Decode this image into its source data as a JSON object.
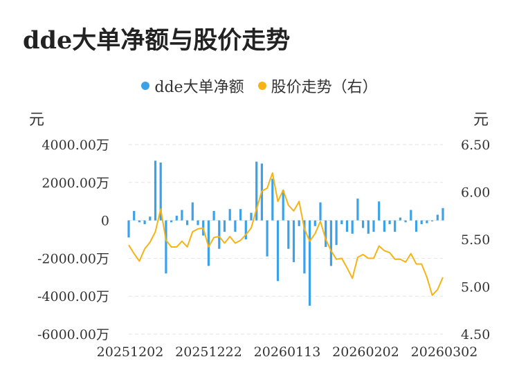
{
  "title": "dde大单净额与股价走势",
  "legend": [
    {
      "label": "dde大单净额",
      "color": "#3ba1e8"
    },
    {
      "label": "股价走势（右）",
      "color": "#f5b314"
    }
  ],
  "units": {
    "left": "元",
    "right": "元"
  },
  "chart_data": {
    "type": "bar+line",
    "left_axis": {
      "ticks": [
        "4000.00万",
        "2000.00万",
        "0",
        "-2000.00万",
        "-4000.00万",
        "-6000.00万"
      ],
      "min": -6000,
      "max": 4000
    },
    "right_axis": {
      "ticks": [
        "6.50",
        "6.00",
        "5.50",
        "5.00",
        "4.50"
      ],
      "min": 4.5,
      "max": 6.5
    },
    "x_labels": [
      "20251202",
      "20251222",
      "20260113",
      "20260202",
      "20260302"
    ],
    "grid": true,
    "legend_position": "top",
    "series": [
      {
        "name": "dde大单净额",
        "type": "bar",
        "axis": "left",
        "values": [
          -900,
          500,
          -100,
          -200,
          200,
          3150,
          3050,
          -2800,
          -100,
          250,
          550,
          -250,
          950,
          -250,
          -800,
          -2400,
          500,
          -1500,
          -600,
          600,
          -600,
          600,
          -1000,
          400,
          3100,
          3000,
          -1900,
          2200,
          -3200,
          1600,
          -1500,
          -2200,
          -300,
          -2800,
          -4500,
          -300,
          950,
          -1400,
          -2400,
          -1300,
          -200,
          -600,
          -700,
          1150,
          -400,
          -700,
          -600,
          1000,
          -600,
          -200,
          -600,
          150,
          -100,
          550,
          -600,
          -200,
          -150,
          -50,
          300,
          650
        ]
      },
      {
        "name": "股价走势（右）",
        "type": "line",
        "axis": "right",
        "values": [
          5.44,
          5.35,
          5.27,
          5.4,
          5.47,
          5.58,
          5.82,
          5.49,
          5.42,
          5.42,
          5.48,
          5.42,
          5.58,
          5.61,
          5.62,
          5.42,
          5.52,
          5.53,
          5.46,
          5.53,
          5.46,
          5.49,
          5.55,
          5.62,
          5.82,
          6.01,
          6.04,
          6.2,
          5.9,
          6.02,
          5.86,
          5.8,
          5.9,
          5.61,
          5.48,
          5.56,
          5.69,
          5.5,
          5.38,
          5.29,
          5.3,
          5.2,
          5.09,
          5.31,
          5.34,
          5.3,
          5.3,
          5.43,
          5.38,
          5.36,
          5.29,
          5.29,
          5.26,
          5.35,
          5.24,
          5.24,
          5.1,
          4.91,
          4.97,
          5.1
        ]
      }
    ]
  }
}
